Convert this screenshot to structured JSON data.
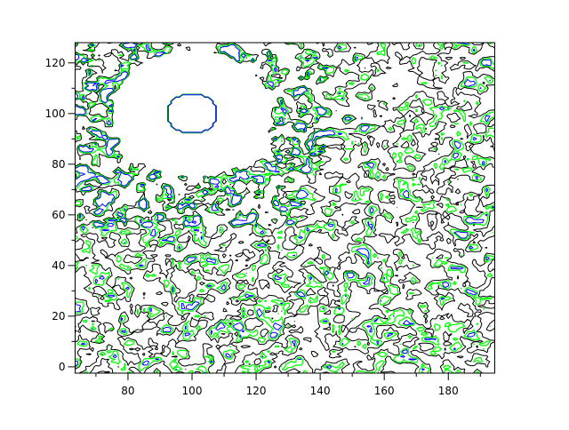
{
  "chart_data": {
    "type": "contour",
    "title": "",
    "xlabel": "",
    "ylabel": "",
    "xlim": [
      63.5,
      194.5
    ],
    "ylim": [
      -2.5,
      128
    ],
    "xticks": [
      80,
      100,
      120,
      140,
      160,
      180
    ],
    "xtick_labels": [
      "80",
      "100",
      "120",
      "140",
      "160",
      "180"
    ],
    "xminor_step": 10,
    "yticks": [
      0,
      20,
      40,
      60,
      80,
      100,
      120
    ],
    "ytick_labels": [
      "0",
      "20",
      "40",
      "60",
      "80",
      "100",
      "120"
    ],
    "yminor_step": 10,
    "grid": false,
    "levels": [
      {
        "color": "#000000"
      },
      {
        "color": "#00ff00"
      },
      {
        "color": "#0000ff"
      }
    ],
    "features": {
      "empty_disk_center": [
        100,
        100
      ],
      "empty_disk_radius": 25,
      "inner_ring_radius": 8
    }
  }
}
